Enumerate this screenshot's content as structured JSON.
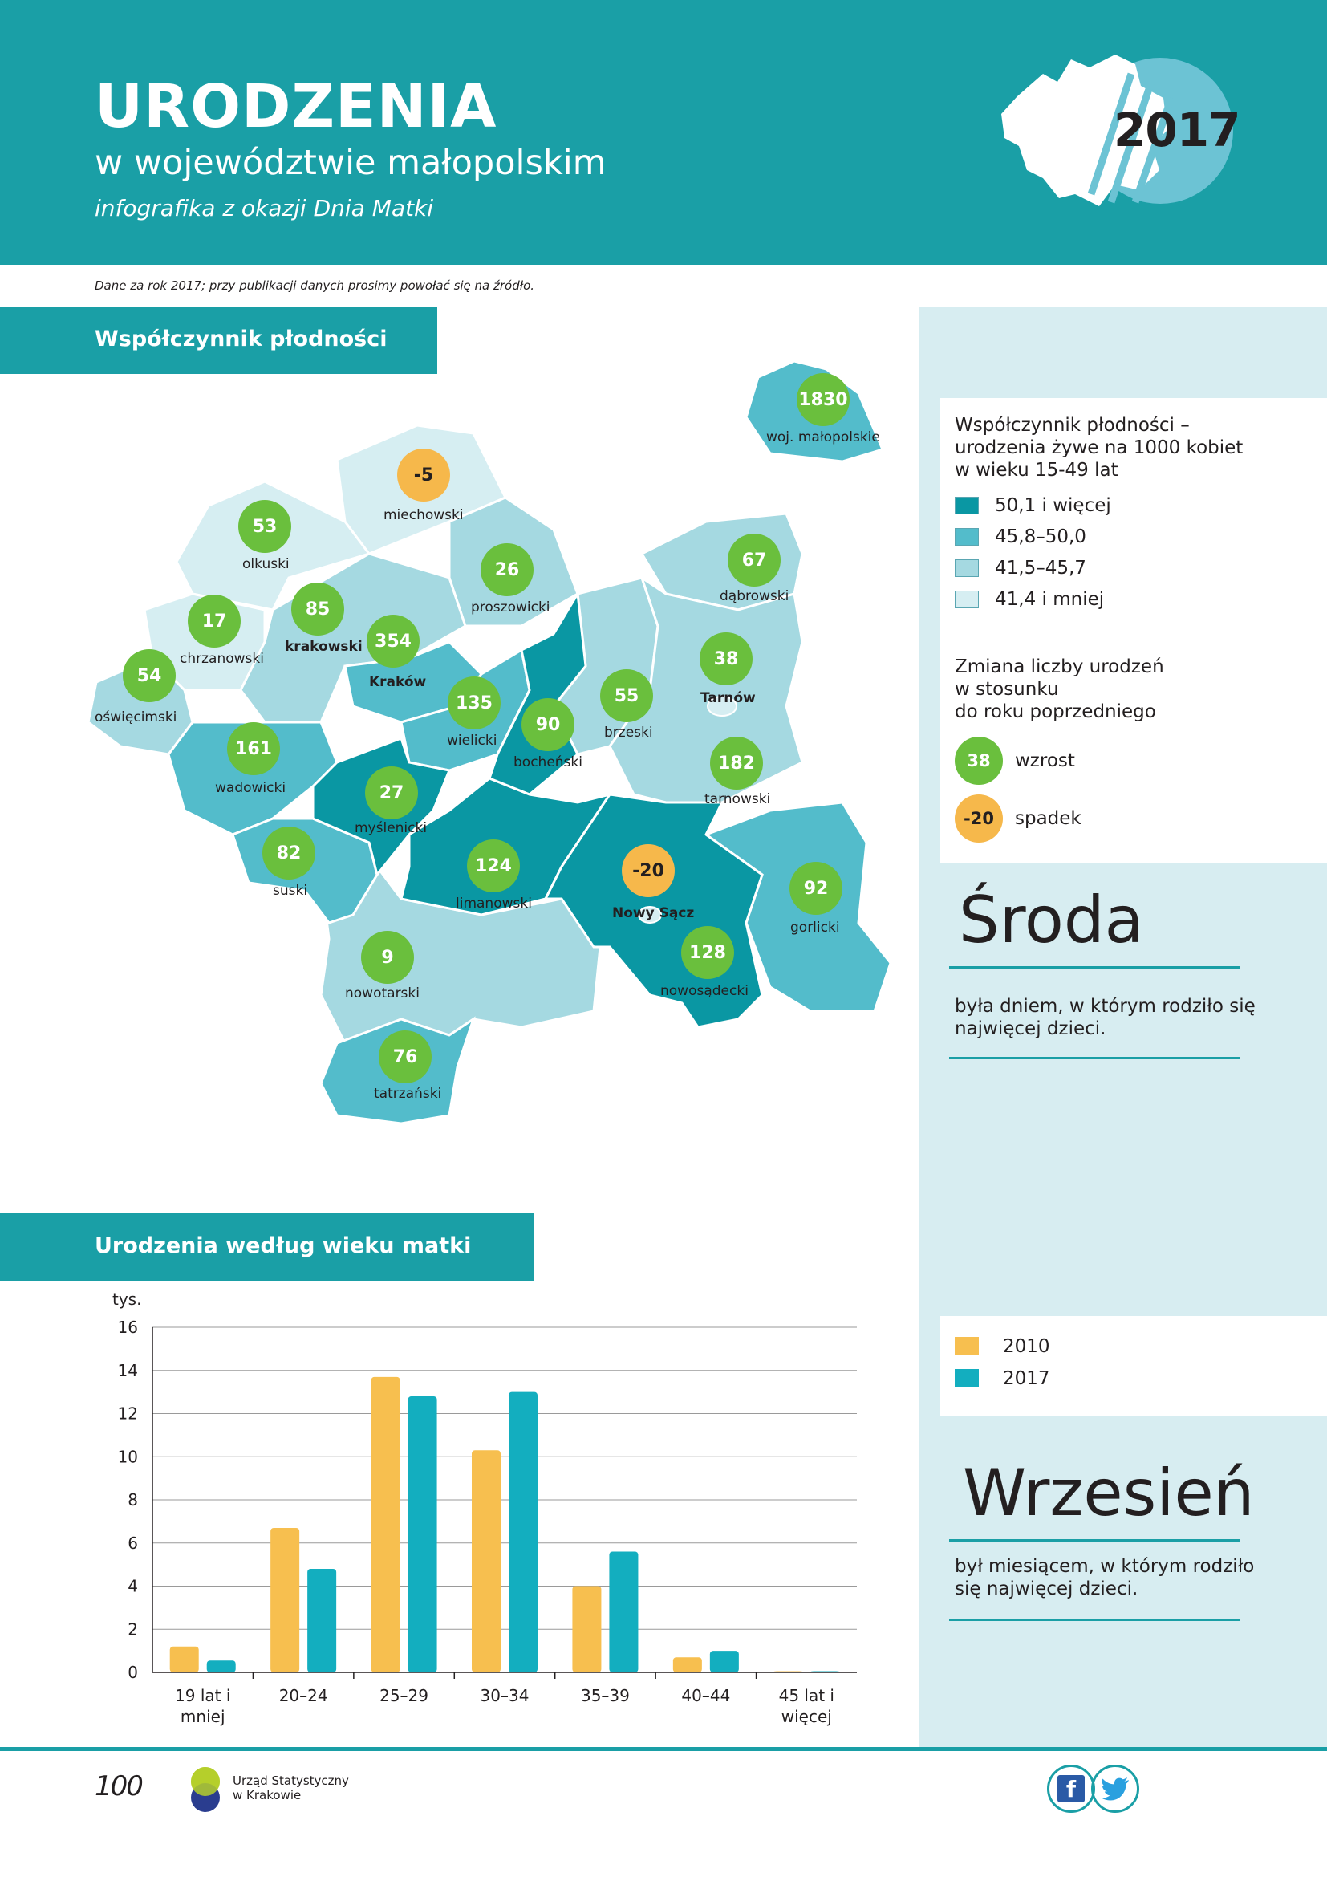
{
  "header": {
    "title": "URODZENIA",
    "subtitle": "w województwie małopolskim",
    "tagline": "infografika z okazji Dnia Matki",
    "year": "2017"
  },
  "note": "Dane za rok 2017; przy publikacji danych prosimy powołać się na źródło.",
  "section1": {
    "title": "Współczynnik płodności"
  },
  "section2": {
    "title": "Urodzenia według wieku matki"
  },
  "map_legend": {
    "title_lines": [
      "Współczynnik płodności –",
      "urodzenia żywe na 1000 kobiet",
      "w wieku 15-49 lat"
    ],
    "classes": [
      {
        "label": "50,1 i więcej",
        "color": "#0a97a3"
      },
      {
        "label": "45,8–50,0",
        "color": "#53bccb"
      },
      {
        "label": "41,5–45,7",
        "color": "#a5d9e1"
      },
      {
        "label": "41,4 i mniej",
        "color": "#d6eef2"
      }
    ],
    "change_title_lines": [
      "Zmiana liczby urodzeń",
      "w stosunku",
      "do roku poprzedniego"
    ],
    "increase": {
      "value": "38",
      "label": "wzrost",
      "color": "#6abf3d"
    },
    "decrease": {
      "value": "-20",
      "label": "spadek",
      "color": "#f6b84b"
    }
  },
  "regions": [
    {
      "name": "woj. małopolskie",
      "change": "1830"
    },
    {
      "name": "miechowski",
      "change": "-5"
    },
    {
      "name": "olkuski",
      "change": "53"
    },
    {
      "name": "proszowicki",
      "change": "26"
    },
    {
      "name": "dąbrowski",
      "change": "67"
    },
    {
      "name": "chrzanowski",
      "change": "17"
    },
    {
      "name": "krakowski",
      "change": "85"
    },
    {
      "name": "Kraków",
      "change": "354"
    },
    {
      "name": "Tarnów",
      "change": "38"
    },
    {
      "name": "oświęcimski",
      "change": "54"
    },
    {
      "name": "wielicki",
      "change": "135"
    },
    {
      "name": "bocheński",
      "change": "90"
    },
    {
      "name": "brzeski",
      "change": "55"
    },
    {
      "name": "wadowicki",
      "change": "161"
    },
    {
      "name": "tarnowski",
      "change": "182"
    },
    {
      "name": "myślenicki",
      "change": "27"
    },
    {
      "name": "suski",
      "change": "82"
    },
    {
      "name": "limanowski",
      "change": "124"
    },
    {
      "name": "Nowy Sącz",
      "change": "-20"
    },
    {
      "name": "gorlicki",
      "change": "92"
    },
    {
      "name": "nowotarski",
      "change": "9"
    },
    {
      "name": "nowosądecki",
      "change": "128"
    },
    {
      "name": "tatrzański",
      "change": "76"
    }
  ],
  "facts": [
    {
      "word": "Środa",
      "text_lines": [
        "była dniem, w którym rodziło się",
        "najwięcej dzieci."
      ]
    },
    {
      "word": "Wrzesień",
      "text_lines": [
        "był miesiącem, w którym rodziło",
        "się najwięcej dzieci."
      ]
    }
  ],
  "chart_data": {
    "type": "bar",
    "ylabel": "tys.",
    "ylim": [
      0,
      16
    ],
    "yticks": [
      0,
      2,
      4,
      6,
      8,
      10,
      12,
      14,
      16
    ],
    "categories": [
      "19 lat i mniej",
      "20–24",
      "25–29",
      "30–34",
      "35–39",
      "40–44",
      "45 lat i więcej"
    ],
    "category_lines": [
      [
        "19 lat i",
        "mniej"
      ],
      [
        "20–24"
      ],
      [
        "25–29"
      ],
      [
        "30–34"
      ],
      [
        "35–39"
      ],
      [
        "40–44"
      ],
      [
        "45 lat i",
        "więcej"
      ]
    ],
    "series": [
      {
        "name": "2010",
        "color": "#f7bf4f",
        "values": [
          1.2,
          6.7,
          13.7,
          10.3,
          4.0,
          0.7,
          0.05
        ]
      },
      {
        "name": "2017",
        "color": "#13aebf",
        "values": [
          0.55,
          4.8,
          12.8,
          13.0,
          5.6,
          1.0,
          0.05
        ]
      }
    ],
    "grid": true,
    "legend": "right"
  },
  "footer": {
    "logo1": "100",
    "org_line1": "Urząd Statystyczny",
    "org_line2": "w Krakowie",
    "facebook": "f"
  }
}
